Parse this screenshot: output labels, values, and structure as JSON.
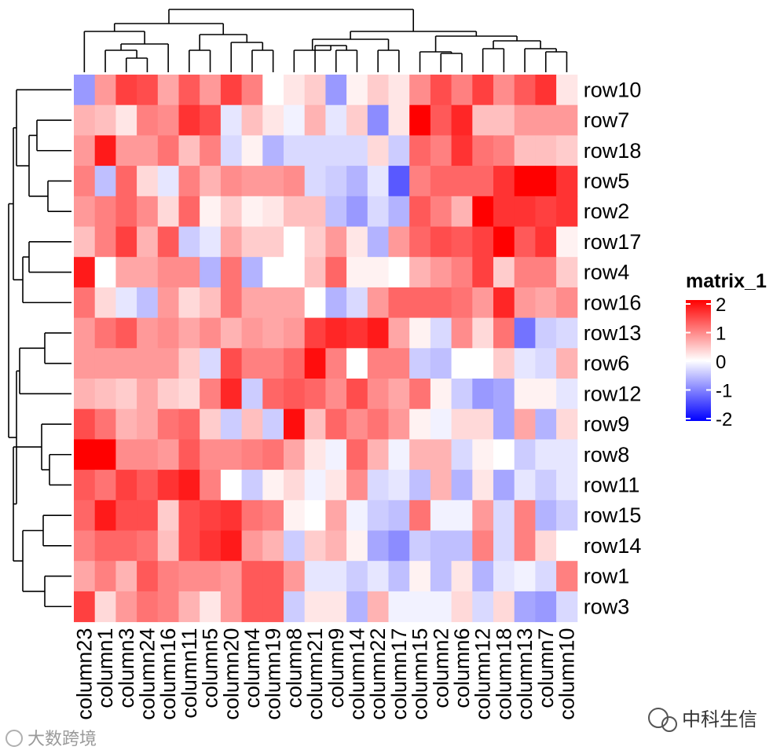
{
  "chart_data": {
    "type": "heatmap",
    "row_labels": [
      "row10",
      "row7",
      "row18",
      "row5",
      "row2",
      "row17",
      "row4",
      "row16",
      "row13",
      "row6",
      "row12",
      "row9",
      "row8",
      "row11",
      "row15",
      "row14",
      "row1",
      "row3"
    ],
    "column_labels": [
      "column23",
      "column1",
      "column3",
      "column24",
      "column16",
      "column11",
      "column5",
      "column20",
      "column4",
      "column19",
      "column8",
      "column21",
      "column9",
      "column14",
      "column22",
      "column17",
      "column15",
      "column2",
      "column6",
      "column12",
      "column18",
      "column13",
      "column7",
      "column10"
    ],
    "values": [
      [
        -0.8,
        0.8,
        1.5,
        1.4,
        0.7,
        1.3,
        0.8,
        1.5,
        1.0,
        0.0,
        0.2,
        0.4,
        -0.8,
        0.1,
        0.4,
        0.2,
        0.9,
        1.4,
        1.0,
        1.5,
        0.9,
        1.3,
        1.6,
        0.2
      ],
      [
        0.6,
        0.5,
        0.2,
        1.0,
        0.9,
        1.6,
        1.4,
        -0.2,
        0.5,
        0.2,
        -0.1,
        0.6,
        -0.2,
        0.4,
        -0.9,
        0.2,
        2.0,
        1.3,
        1.7,
        0.5,
        0.5,
        0.8,
        0.8,
        0.8
      ],
      [
        0.8,
        1.8,
        0.8,
        0.8,
        1.1,
        0.5,
        1.0,
        -0.3,
        0.1,
        -0.6,
        -0.3,
        -0.3,
        -0.3,
        -0.3,
        0.3,
        -0.4,
        1.2,
        1.0,
        1.6,
        1.1,
        1.0,
        0.5,
        0.5,
        0.4
      ],
      [
        1.0,
        -0.5,
        1.2,
        0.3,
        -0.2,
        1.0,
        0.6,
        0.9,
        0.8,
        0.8,
        0.9,
        -0.3,
        -0.4,
        -0.6,
        -0.2,
        -1.3,
        1.0,
        1.2,
        1.2,
        1.2,
        1.6,
        2.0,
        2.0,
        1.6
      ],
      [
        0.8,
        1.0,
        1.2,
        0.9,
        0.3,
        1.2,
        0.1,
        0.4,
        0.1,
        0.2,
        0.5,
        0.5,
        -0.5,
        -0.8,
        -0.3,
        -0.6,
        1.3,
        1.0,
        0.6,
        2.0,
        1.6,
        1.6,
        1.5,
        1.6
      ],
      [
        0.5,
        1.0,
        1.5,
        0.6,
        1.3,
        -0.4,
        -0.2,
        0.7,
        0.4,
        0.4,
        0.0,
        0.4,
        0.8,
        0.2,
        -0.6,
        0.8,
        1.2,
        1.4,
        1.3,
        1.5,
        2.1,
        1.3,
        1.6,
        0.1
      ],
      [
        1.8,
        0.0,
        0.7,
        0.7,
        0.9,
        0.9,
        -0.6,
        1.1,
        -0.6,
        0.0,
        0.0,
        0.5,
        1.2,
        0.1,
        0.1,
        0.0,
        0.6,
        0.8,
        1.0,
        1.5,
        0.4,
        1.0,
        1.0,
        0.4
      ],
      [
        1.1,
        0.3,
        -0.2,
        -0.5,
        0.8,
        0.3,
        0.5,
        1.1,
        0.7,
        0.7,
        0.7,
        0.0,
        -0.6,
        -0.3,
        0.8,
        1.2,
        1.2,
        1.2,
        1.1,
        0.8,
        1.7,
        0.8,
        0.7,
        0.9
      ],
      [
        0.8,
        1.1,
        1.3,
        0.8,
        0.9,
        0.7,
        0.9,
        0.6,
        0.8,
        0.7,
        0.8,
        1.5,
        1.7,
        1.6,
        1.8,
        0.7,
        0.1,
        -0.3,
        0.9,
        0.3,
        1.1,
        -1.1,
        -0.4,
        -0.3
      ],
      [
        0.8,
        0.8,
        0.8,
        0.8,
        0.8,
        0.4,
        -0.3,
        1.4,
        1.0,
        1.0,
        1.2,
        1.9,
        1.0,
        0.0,
        1.0,
        1.0,
        -0.4,
        -0.5,
        0.0,
        0.0,
        0.4,
        -0.2,
        -0.3,
        0.6
      ],
      [
        0.6,
        0.5,
        0.4,
        0.7,
        0.4,
        0.3,
        1.0,
        1.7,
        -0.4,
        1.2,
        1.3,
        1.2,
        0.9,
        1.4,
        0.9,
        0.7,
        1.1,
        0.1,
        -0.4,
        -0.8,
        -0.7,
        0.1,
        0.1,
        -0.2
      ],
      [
        1.4,
        1.1,
        0.6,
        0.7,
        1.1,
        1.2,
        0.4,
        -0.4,
        0.5,
        -0.4,
        1.9,
        0.5,
        1.2,
        0.9,
        1.1,
        0.8,
        0.1,
        -0.1,
        0.3,
        0.3,
        -0.7,
        0.7,
        -0.6,
        0.3
      ],
      [
        2.0,
        2.1,
        0.9,
        0.9,
        0.8,
        1.3,
        0.9,
        0.9,
        1.0,
        1.1,
        0.7,
        0.2,
        -0.1,
        1.2,
        0.6,
        -0.1,
        0.6,
        0.6,
        -0.3,
        0.1,
        0.0,
        -0.4,
        -0.2,
        -0.2
      ],
      [
        1.3,
        1.1,
        1.5,
        1.3,
        1.6,
        1.8,
        1.0,
        0.0,
        -0.4,
        0.1,
        0.3,
        -0.1,
        0.2,
        0.9,
        -0.3,
        -0.2,
        -0.5,
        0.6,
        -0.6,
        0.2,
        -0.7,
        -0.2,
        -0.4,
        -0.2
      ],
      [
        1.2,
        1.8,
        1.4,
        1.4,
        0.4,
        1.4,
        1.5,
        1.6,
        1.1,
        1.0,
        0.1,
        0.0,
        0.7,
        -0.1,
        -0.4,
        -0.5,
        1.1,
        -0.1,
        -0.1,
        0.8,
        -0.3,
        1.0,
        -0.6,
        -0.4
      ],
      [
        1.0,
        1.2,
        1.2,
        1.1,
        0.5,
        1.4,
        1.6,
        1.8,
        0.8,
        0.6,
        -0.4,
        0.4,
        0.6,
        0.1,
        -0.7,
        -0.9,
        -0.4,
        -0.5,
        -0.5,
        1.0,
        -0.3,
        1.0,
        0.3,
        0.0
      ],
      [
        0.7,
        1.0,
        0.6,
        1.3,
        1.0,
        0.9,
        0.9,
        0.8,
        1.3,
        1.3,
        0.8,
        -0.2,
        -0.2,
        -0.4,
        -0.2,
        -0.5,
        0.1,
        -0.5,
        0.2,
        -0.6,
        -0.2,
        -0.1,
        -0.3,
        1.0
      ],
      [
        1.5,
        0.3,
        0.8,
        1.1,
        1.0,
        0.6,
        0.2,
        0.8,
        1.3,
        1.3,
        -0.4,
        0.2,
        0.2,
        -0.6,
        0.6,
        -0.1,
        -0.1,
        -0.1,
        0.3,
        -0.3,
        0.3,
        -0.7,
        -0.8,
        -0.3
      ]
    ],
    "legend": {
      "title": "matrix_1",
      "ticks": [
        2,
        1,
        0,
        -1,
        -2
      ],
      "tick_labels": [
        "2",
        "1",
        "0",
        "-1",
        "-2"
      ],
      "colors": [
        "#ff0000",
        "#ffffff",
        "#0000ff"
      ],
      "color_range": [
        -2,
        2
      ]
    },
    "row_dendrogram": true,
    "column_dendrogram": true
  },
  "watermarks": {
    "left": "大数跨境",
    "right": "中科生信"
  }
}
